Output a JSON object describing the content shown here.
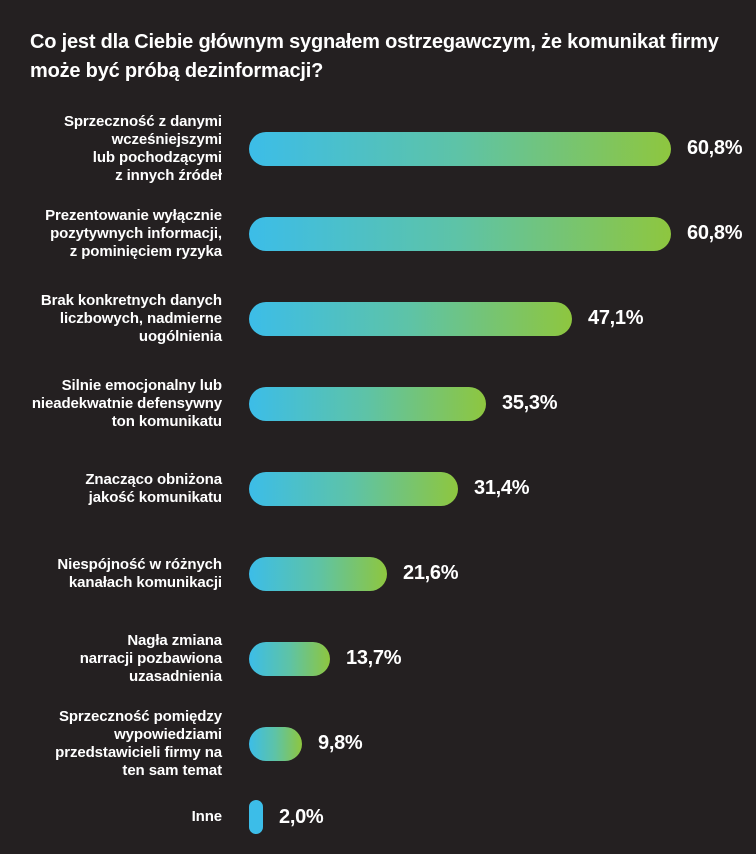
{
  "title": "Co jest dla Ciebie głównym sygnałem ostrzegawczym, że komunikat firmy może być próbą dezinformacji?",
  "colors": {
    "background": "#242021",
    "text": "#ffffff",
    "bar_gradient_start": "#3cbde8",
    "bar_gradient_mid": "#5ec3a6",
    "bar_gradient_end": "#8ec63f"
  },
  "chart_data": {
    "type": "bar",
    "orientation": "horizontal",
    "title": "Co jest dla Ciebie głównym sygnałem ostrzegawczym, że komunikat firmy może być próbą dezinformacji?",
    "categories": [
      "Sprzeczność z danymi\nwcześniejszymi\nlub pochodzącymi\nz innych źródeł",
      "Prezentowanie wyłącznie\npozytywnych informacji,\nz pominięciem ryzyka",
      "Brak konkretnych danych\nliczbowych, nadmierne\nuogólnienia",
      "Silnie emocjonalny lub\nnieadekwatnie defensywny\nton komunikatu",
      "Znacząco obniżona\njakość komunikatu",
      "Niespójność w różnych\nkanałach komunikacji",
      "Nagła zmiana\nnarracji pozbawiona\nuzasadnienia",
      "Sprzeczność pomiędzy\nwypowiedziami\nprzedstawicieli firmy na\nten sam temat",
      "Inne"
    ],
    "values": [
      60.8,
      60.8,
      47.1,
      35.3,
      31.4,
      21.6,
      13.7,
      9.8,
      2.0
    ],
    "value_labels": [
      "60,8%",
      "60,8%",
      "47,1%",
      "35,3%",
      "31,4%",
      "21,6%",
      "13,7%",
      "9,8%",
      "2,0%"
    ],
    "xlabel": "",
    "ylabel": "",
    "xlim": [
      0,
      65
    ],
    "grid": false,
    "legend": false,
    "bar_style": "rounded pill, cyan-to-green horizontal gradient"
  }
}
